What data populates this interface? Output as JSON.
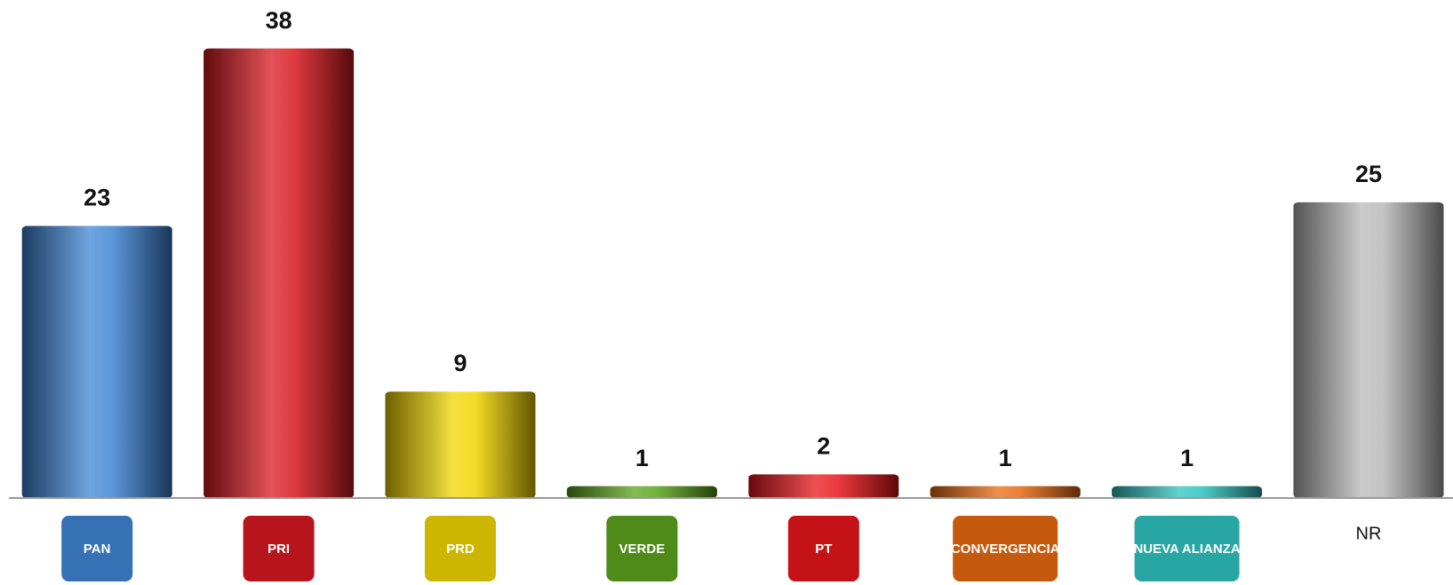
{
  "chart_data": {
    "type": "bar",
    "categories": [
      "PAN",
      "PRI",
      "PRD",
      "VERDE",
      "PT",
      "CONVERGENCIA",
      "NUEVA ALIANZA",
      "NR"
    ],
    "values": [
      23,
      38,
      9,
      1,
      2,
      1,
      1,
      25
    ],
    "colors": [
      "#3f85d6",
      "#d81820",
      "#f2d600",
      "#5ca31c",
      "#e8151a",
      "#e86a12",
      "#2fc3c0",
      "#b8b8b8"
    ],
    "ylim": [
      0,
      40
    ]
  }
}
